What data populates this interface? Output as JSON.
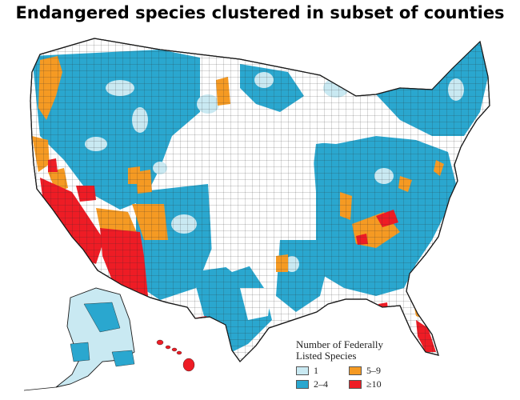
{
  "title": "Endangered species clustered in subset of counties",
  "colors": {
    "one": "#c9e9f2",
    "two_to_four": "#2aa7cf",
    "five_to_nine": "#f59a23",
    "ten_plus": "#ee1c25",
    "border": "#1a1a1a",
    "none": "#ffffff"
  },
  "legend": {
    "title_line1": "Number of Federally",
    "title_line2": "Listed Species",
    "items": [
      {
        "label": "1",
        "color": "#c9e9f2"
      },
      {
        "label": "5–9",
        "color": "#f59a23"
      },
      {
        "label": "2–4",
        "color": "#2aa7cf"
      },
      {
        "label": "≥10",
        "color": "#ee1c25"
      }
    ]
  }
}
